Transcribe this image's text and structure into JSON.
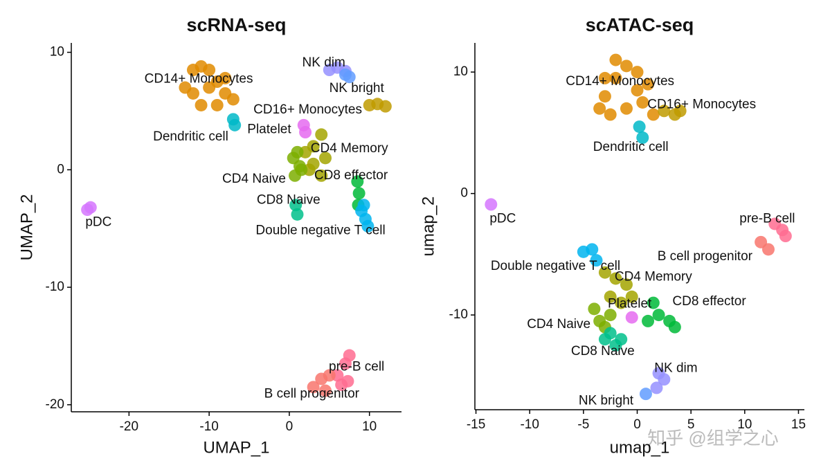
{
  "watermark": "知乎 @组学之心",
  "chart_data": [
    {
      "type": "scatter",
      "title": "scRNA-seq",
      "x_label": "UMAP_1",
      "y_label": "UMAP_2",
      "xlim": [
        -27.2,
        14
      ],
      "ylim": [
        -20.6,
        10.8
      ],
      "xticks": [
        -20,
        -10,
        0,
        10
      ],
      "yticks": [
        10,
        0,
        -10,
        -20
      ],
      "series": [
        {
          "name": "CD14+ Monocytes",
          "color": "#E08B00",
          "x": [
            -13,
            -12,
            -11,
            -10,
            -9,
            -8,
            -7,
            -11,
            -9,
            -12,
            -10,
            -8
          ],
          "y": [
            7,
            8.5,
            8.8,
            8.5,
            7.5,
            6.5,
            6,
            5.5,
            5.5,
            6.5,
            7,
            7.8
          ],
          "label_x": -11.3,
          "label_y": 7.7
        },
        {
          "name": "CD16+ Monocytes",
          "color": "#BF9B00",
          "x": [
            10,
            11,
            12
          ],
          "y": [
            5.5,
            5.6,
            5.4
          ],
          "label_x": 2.3,
          "label_y": 5.1
        },
        {
          "name": "Dendritic cell",
          "color": "#00B8C8",
          "x": [
            -7,
            -6.8
          ],
          "y": [
            4.3,
            3.8
          ],
          "label_x": -12.3,
          "label_y": 2.8
        },
        {
          "name": "Platelet",
          "color": "#E56BF0",
          "x": [
            1.8,
            2
          ],
          "y": [
            3.8,
            3.2
          ],
          "label_x": -2.5,
          "label_y": 3.4
        },
        {
          "name": "NK dim",
          "color": "#9590FF",
          "x": [
            5,
            6,
            7
          ],
          "y": [
            8.5,
            8.7,
            8.4
          ],
          "label_x": 4.3,
          "label_y": 9.1
        },
        {
          "name": "NK bright",
          "color": "#619CFF",
          "x": [
            7,
            7.5
          ],
          "y": [
            8.1,
            7.9
          ],
          "label_x": 8.4,
          "label_y": 6.9
        },
        {
          "name": "CD4 Memory",
          "color": "#A3A500",
          "x": [
            2,
            3,
            4,
            3,
            4.5,
            4,
            2.5
          ],
          "y": [
            1.5,
            2,
            3,
            0.5,
            1,
            -0.5,
            0
          ],
          "label_x": 7.5,
          "label_y": 1.8
        },
        {
          "name": "CD4 Naive",
          "color": "#7CAE00",
          "x": [
            0.5,
            1,
            1.5,
            0.7,
            1.3
          ],
          "y": [
            1,
            1.5,
            0,
            -0.5,
            0.3
          ],
          "label_x": -4.4,
          "label_y": -0.8
        },
        {
          "name": "CD8 effector",
          "color": "#00BA38",
          "x": [
            8.5,
            8.7,
            8.6
          ],
          "y": [
            -1,
            -2,
            -3
          ],
          "label_x": 7.7,
          "label_y": -0.5
        },
        {
          "name": "CD8 Naive",
          "color": "#00C08B",
          "x": [
            0.8,
            1
          ],
          "y": [
            -3,
            -3.8
          ],
          "label_x": -0.1,
          "label_y": -2.6
        },
        {
          "name": "Double negative T cell",
          "color": "#00B4EF",
          "x": [
            9,
            9.5,
            9.8,
            9.3
          ],
          "y": [
            -3.5,
            -4.2,
            -4.8,
            -3
          ],
          "label_x": 3.9,
          "label_y": -5.2
        },
        {
          "name": "pDC",
          "color": "#D575FE",
          "x": [
            -25.2,
            -24.8
          ],
          "y": [
            -3.4,
            -3.2
          ],
          "label_x": -23.8,
          "label_y": -4.5
        },
        {
          "name": "pre-B cell",
          "color": "#FF6C91",
          "x": [
            6,
            7,
            7.5,
            7.3,
            6.5
          ],
          "y": [
            -17.5,
            -16.5,
            -15.8,
            -18,
            -18.3
          ],
          "label_x": 8.4,
          "label_y": -16.8
        },
        {
          "name": "B cell progenitor",
          "color": "#F8766D",
          "x": [
            3,
            4,
            5,
            4.5
          ],
          "y": [
            -18.5,
            -17.8,
            -17.5,
            -18.8
          ],
          "label_x": 2.8,
          "label_y": -19.1
        }
      ]
    },
    {
      "type": "scatter",
      "title": "scATAC-seq",
      "x_label": "umap_1",
      "y_label": "umap_2",
      "xlim": [
        -15.1,
        15.55
      ],
      "ylim": [
        -17.8,
        12.4
      ],
      "xticks": [
        -15,
        -10,
        -5,
        0,
        5,
        10,
        15
      ],
      "yticks": [
        10,
        0,
        -10
      ],
      "series": [
        {
          "name": "CD14+ Monocytes",
          "color": "#E08B00",
          "x": [
            -3,
            -2,
            -1,
            0,
            1,
            -3.5,
            -2.5,
            -1,
            0.5,
            -2,
            -3,
            0,
            1.5
          ],
          "y": [
            8,
            9.5,
            10.5,
            10,
            9,
            7,
            6.5,
            7,
            7.5,
            11,
            9.5,
            8.5,
            6.5
          ],
          "label_x": -1.6,
          "label_y": 9.2
        },
        {
          "name": "CD16+ Monocytes",
          "color": "#BF9B00",
          "x": [
            2.5,
            3.5,
            4
          ],
          "y": [
            6.8,
            6.5,
            6.8
          ],
          "label_x": 6,
          "label_y": 7.3
        },
        {
          "name": "Dendritic cell",
          "color": "#00B8C8",
          "x": [
            0.2,
            0.5
          ],
          "y": [
            5.5,
            4.6
          ],
          "label_x": -0.6,
          "label_y": 3.8
        },
        {
          "name": "pDC",
          "color": "#D575FE",
          "x": [
            -13.6
          ],
          "y": [
            -0.9
          ],
          "label_x": -12.5,
          "label_y": -2.1
        },
        {
          "name": "pre-B cell",
          "color": "#FF6C91",
          "x": [
            12.8,
            13.5,
            13.8
          ],
          "y": [
            -2.5,
            -3,
            -3.5
          ],
          "label_x": 12.1,
          "label_y": -2.1
        },
        {
          "name": "B cell progenitor",
          "color": "#F8766D",
          "x": [
            11.5,
            12.2
          ],
          "y": [
            -4,
            -4.6
          ],
          "label_x": 6.3,
          "label_y": -5.2
        },
        {
          "name": "Double negative T cell",
          "color": "#00B4EF",
          "x": [
            -5,
            -4.2,
            -3.8
          ],
          "y": [
            -4.8,
            -4.6,
            -5.5
          ],
          "label_x": -7.6,
          "label_y": -6
        },
        {
          "name": "CD4 Memory",
          "color": "#A3A500",
          "x": [
            -3,
            -2,
            -1,
            -0.5,
            -2.5,
            -1.5
          ],
          "y": [
            -6.5,
            -7,
            -7.5,
            -8.5,
            -8.5,
            -9
          ],
          "label_x": 1.5,
          "label_y": -6.9
        },
        {
          "name": "CD8 effector",
          "color": "#00BA38",
          "x": [
            1.5,
            2,
            3,
            3.5,
            1
          ],
          "y": [
            -9,
            -10,
            -10.5,
            -11,
            -10.5
          ],
          "label_x": 6.7,
          "label_y": -8.9
        },
        {
          "name": "CD4 Naive",
          "color": "#7CAE00",
          "x": [
            -4,
            -3.5,
            -3,
            -2.5
          ],
          "y": [
            -9.5,
            -10.5,
            -11,
            -10
          ],
          "label_x": -7.3,
          "label_y": -10.8
        },
        {
          "name": "CD8 Naive",
          "color": "#00C08B",
          "x": [
            -2.5,
            -1.5,
            -2,
            -3
          ],
          "y": [
            -11.5,
            -12,
            -12.5,
            -12
          ],
          "label_x": -3.2,
          "label_y": -13
        },
        {
          "name": "Platelet",
          "color": "#E56BF0",
          "x": [
            -0.5
          ],
          "y": [
            -10.2
          ],
          "label_x": -0.7,
          "label_y": -9.1
        },
        {
          "name": "NK dim",
          "color": "#9590FF",
          "x": [
            2,
            2.5,
            1.8
          ],
          "y": [
            -14.8,
            -15.3,
            -16
          ],
          "label_x": 3.6,
          "label_y": -14.4
        },
        {
          "name": "NK bright",
          "color": "#619CFF",
          "x": [
            0.8
          ],
          "y": [
            -16.5
          ],
          "label_x": -2.9,
          "label_y": -17.1
        }
      ]
    }
  ]
}
